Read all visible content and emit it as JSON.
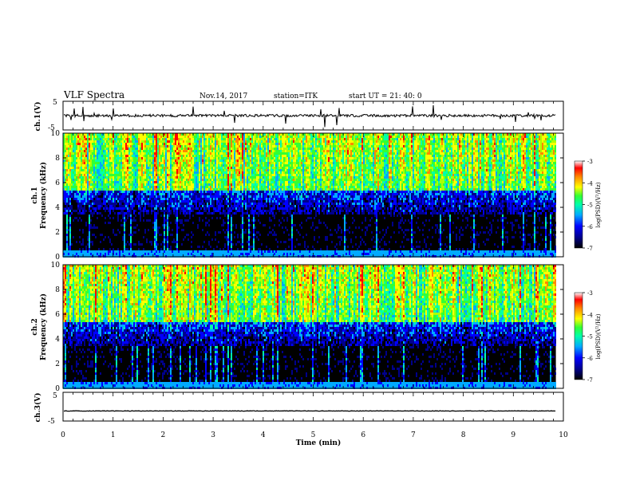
{
  "header": {
    "title": "VLF Spectra",
    "date": "Nov.14, 2017",
    "station": "station=ITK",
    "start_ut": "start UT =  21: 40: 0"
  },
  "chart_data": [
    {
      "type": "line",
      "panel": "ch1-waveform",
      "ylabel": "ch.1(V)",
      "ylim": [
        -5,
        5
      ],
      "yticks": [
        "5",
        "-5"
      ],
      "x_range": [
        0,
        9.85
      ],
      "baseline": 0
    },
    {
      "type": "heatmap",
      "panel": "ch1-spectrogram",
      "ylabel_channel": "ch.1",
      "ylabel": "Frequency (kHz)",
      "ylim": [
        0,
        10
      ],
      "yticks": [
        "0",
        "2",
        "4",
        "6",
        "8",
        "10"
      ],
      "colorbar": {
        "label": "log(PSD)(V²/Hz)",
        "range": [
          -7,
          -3
        ],
        "ticks": [
          "-3",
          "-4",
          "-5",
          "-6",
          "-7"
        ]
      }
    },
    {
      "type": "heatmap",
      "panel": "ch2-spectrogram",
      "ylabel_channel": "ch.2",
      "ylabel": "Frequency (kHz)",
      "ylim": [
        0,
        10
      ],
      "yticks": [
        "0",
        "2",
        "4",
        "6",
        "8",
        "10"
      ],
      "colorbar": {
        "label": "log(PSD)(V²/Hz)",
        "range": [
          -7,
          -3
        ],
        "ticks": [
          "-3",
          "-4",
          "-5",
          "-6",
          "-7"
        ]
      }
    },
    {
      "type": "line",
      "panel": "ch3-waveform",
      "ylabel": "ch.3(V)",
      "ylim": [
        -5,
        5
      ],
      "yticks": [
        "5",
        "-5"
      ],
      "x_range": [
        0,
        9.85
      ],
      "baseline": -1.5
    }
  ],
  "x_axis": {
    "xlabel": "Time (min)",
    "xlim": [
      0,
      10
    ],
    "xticks": [
      "0",
      "1",
      "2",
      "3",
      "4",
      "5",
      "6",
      "7",
      "8",
      "9",
      "10"
    ]
  },
  "colors": {
    "colormap": [
      "#000000",
      "#00008b",
      "#0000ff",
      "#00aaff",
      "#00ffaa",
      "#33ff33",
      "#aaff00",
      "#ffff00",
      "#ff8800",
      "#ff0000",
      "#ffffff"
    ]
  }
}
